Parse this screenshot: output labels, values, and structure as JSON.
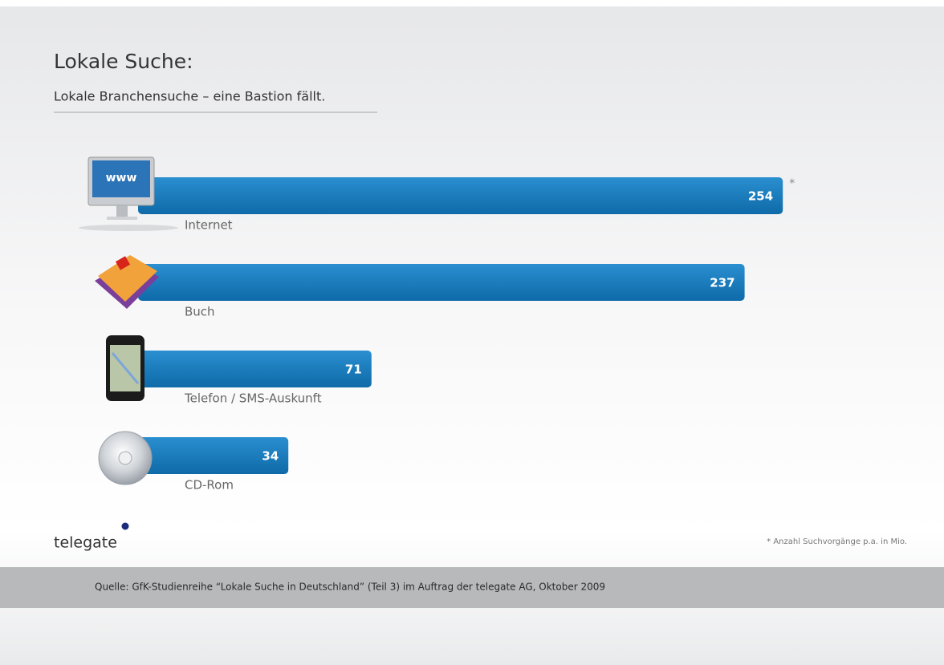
{
  "chart_data": {
    "type": "bar",
    "orientation": "horizontal",
    "title": "Lokale Suche:",
    "subtitle": "Lokale Branchensuche – eine Bastion fällt.",
    "categories": [
      "Internet",
      "Buch",
      "Telefon / SMS-Auskunft",
      "CD-Rom"
    ],
    "values": [
      254,
      237,
      71,
      34
    ],
    "color": "#1a7fc1",
    "annotation": "*",
    "footnote": "* Anzahl Suchvorgänge p.a. in Mio.",
    "logo": "telegate",
    "source": "Quelle: GfK-Studienreihe “Lokale Suche in Deutschland” (Teil 3) im Auftrag der telegate AG, Oktober 2009"
  }
}
